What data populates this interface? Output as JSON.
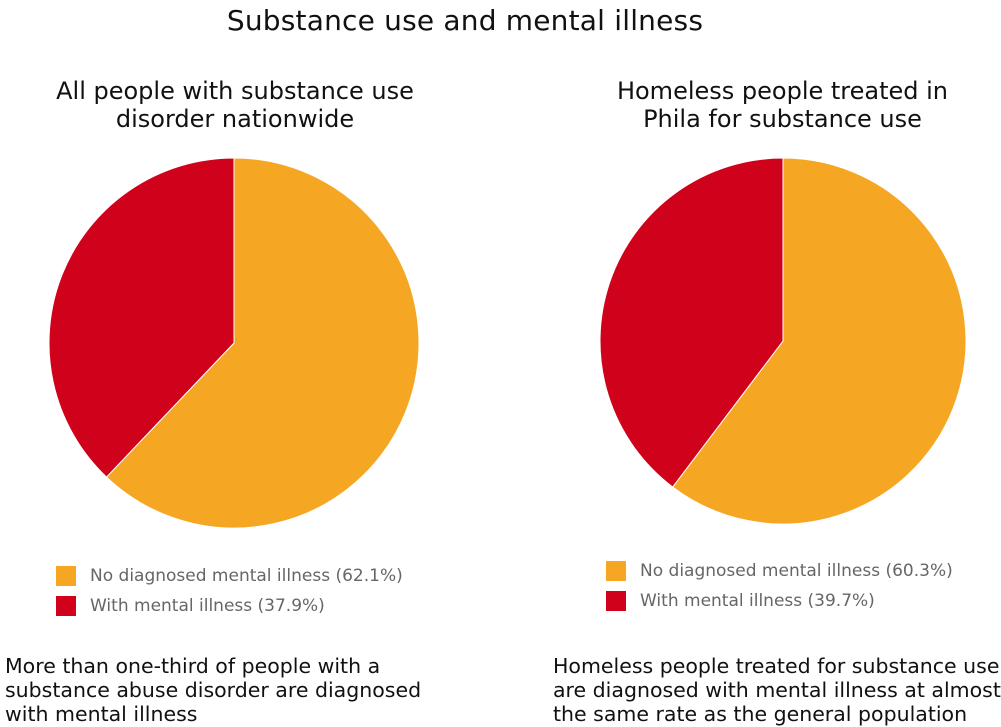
{
  "title": "Substance use and mental illness",
  "colors": {
    "no_mental_illness": "#f5a623",
    "with_mental_illness": "#d0021b"
  },
  "chart_data": [
    {
      "type": "pie",
      "title_lines": [
        "All people with substance use",
        "disorder nationwide"
      ],
      "slices": [
        {
          "label": "No diagnosed mental illness",
          "value": 62.1,
          "legend": "No diagnosed mental illness (62.1%)"
        },
        {
          "label": "With mental illness",
          "value": 37.9,
          "legend": "With mental illness (37.9%)"
        }
      ],
      "legend_position": "bottom-left",
      "caption_lines": [
        "More than one-third of people with a",
        "substance abuse disorder are diagnosed",
        "with mental illness"
      ]
    },
    {
      "type": "pie",
      "title_lines": [
        "Homeless people treated in",
        "Phila for substance use"
      ],
      "slices": [
        {
          "label": "No diagnosed mental illness",
          "value": 60.3,
          "legend": "No diagnosed mental illness (60.3%)"
        },
        {
          "label": "With mental illness",
          "value": 39.7,
          "legend": "With mental illness (39.7%)"
        }
      ],
      "legend_position": "bottom-left",
      "caption_lines": [
        "Homeless people treated for substance use",
        "are diagnosed with mental illness at almost",
        "the same rate as the general population"
      ]
    }
  ]
}
